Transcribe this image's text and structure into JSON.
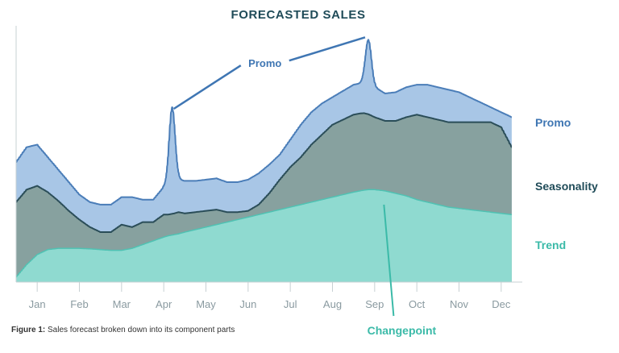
{
  "title": "FORECASTED SALES",
  "caption": {
    "prefix": "Figure 1:",
    "text": "Sales forecast broken down into its component parts"
  },
  "colors": {
    "promo": "#a8c6e6",
    "promo_edge": "#4a7db8",
    "seasonality": "#87a19f",
    "seasonality_edge": "#2a4d58",
    "trend": "#8fdad0",
    "trend_edge": "#4fc2b3",
    "promo_label": "#3f76b3",
    "seasonality_label": "#1f4b58",
    "trend_label": "#3bbaa8",
    "promo_annotation": "#3f76b3",
    "changepoint_annotation": "#3bbaa8"
  },
  "annotations": {
    "promo": "Promo",
    "changepoint": "Changepoint"
  },
  "chart_data": {
    "type": "area",
    "title": "FORECASTED SALES",
    "xlabel": "",
    "ylabel": "",
    "categories": [
      "Jan",
      "Feb",
      "Mar",
      "Apr",
      "May",
      "Jun",
      "Jul",
      "Aug",
      "Sep",
      "Oct",
      "Nov",
      "Dec"
    ],
    "x_range": [
      0,
      12
    ],
    "ylim": [
      0,
      100
    ],
    "grid": false,
    "legend": "right",
    "x": [
      0,
      0.25,
      0.5,
      0.75,
      1,
      1.25,
      1.5,
      1.75,
      2,
      2.25,
      2.5,
      2.75,
      3,
      3.25,
      3.5,
      3.6,
      3.75,
      3.85,
      4,
      4.25,
      4.5,
      4.75,
      5,
      5.25,
      5.5,
      5.75,
      6,
      6.25,
      6.5,
      6.75,
      7,
      7.25,
      7.5,
      7.75,
      8,
      8.15,
      8.25,
      8.35,
      8.5,
      8.75,
      9,
      9.25,
      9.5,
      9.75,
      10,
      10.25,
      10.5,
      10.75,
      11,
      11.25,
      11.5,
      11.75
    ],
    "series": [
      {
        "name": "Trend",
        "values": [
          2,
          7,
          11,
          13,
          13.5,
          13.5,
          13.5,
          13.3,
          13,
          12.7,
          12.7,
          13.5,
          15,
          16.5,
          18,
          18.5,
          19,
          19.3,
          20,
          21,
          22,
          23,
          24,
          25,
          26,
          27,
          28,
          29,
          30,
          31,
          32,
          33,
          34,
          35,
          36,
          36.5,
          36.8,
          37,
          37,
          36.5,
          35.5,
          34.5,
          33,
          32,
          31,
          30,
          29.5,
          29,
          28.5,
          28,
          27.5,
          27
        ]
      },
      {
        "name": "Seasonality",
        "values": [
          32,
          37,
          38.5,
          36,
          32.5,
          28.5,
          25,
          22,
          20,
          20,
          23,
          22,
          24,
          24,
          27,
          27,
          27.5,
          28,
          27.5,
          28,
          28.5,
          29,
          28,
          28,
          28.5,
          31,
          35.5,
          41,
          46,
          50,
          55,
          59,
          63,
          65,
          67,
          67.5,
          67.6,
          67.2,
          66,
          64.5,
          64.5,
          66,
          67,
          66,
          65,
          64,
          64,
          64,
          64,
          64,
          62,
          54
        ]
      },
      {
        "name": "Promo",
        "values": [
          48,
          54,
          55,
          50,
          45,
          40,
          35,
          32,
          31,
          31,
          34,
          34,
          33,
          33,
          38,
          39,
          40,
          41,
          40.5,
          40.5,
          41,
          41.5,
          40,
          40,
          41,
          43.5,
          47,
          51,
          57,
          63,
          68,
          71.5,
          74,
          76.5,
          79,
          79.5,
          80,
          79.5,
          78,
          75.5,
          76,
          78,
          79,
          79,
          78,
          77,
          76,
          74,
          72,
          70,
          68,
          66
        ]
      }
    ],
    "spikes": [
      {
        "at": 3.7,
        "series": "Promo",
        "peak": 70
      },
      {
        "at": 8.35,
        "series": "Promo",
        "peak": 97
      }
    ],
    "annotations": [
      {
        "text": "Promo",
        "target": "Promo spikes"
      },
      {
        "text": "Changepoint",
        "x": 8.5
      }
    ]
  }
}
